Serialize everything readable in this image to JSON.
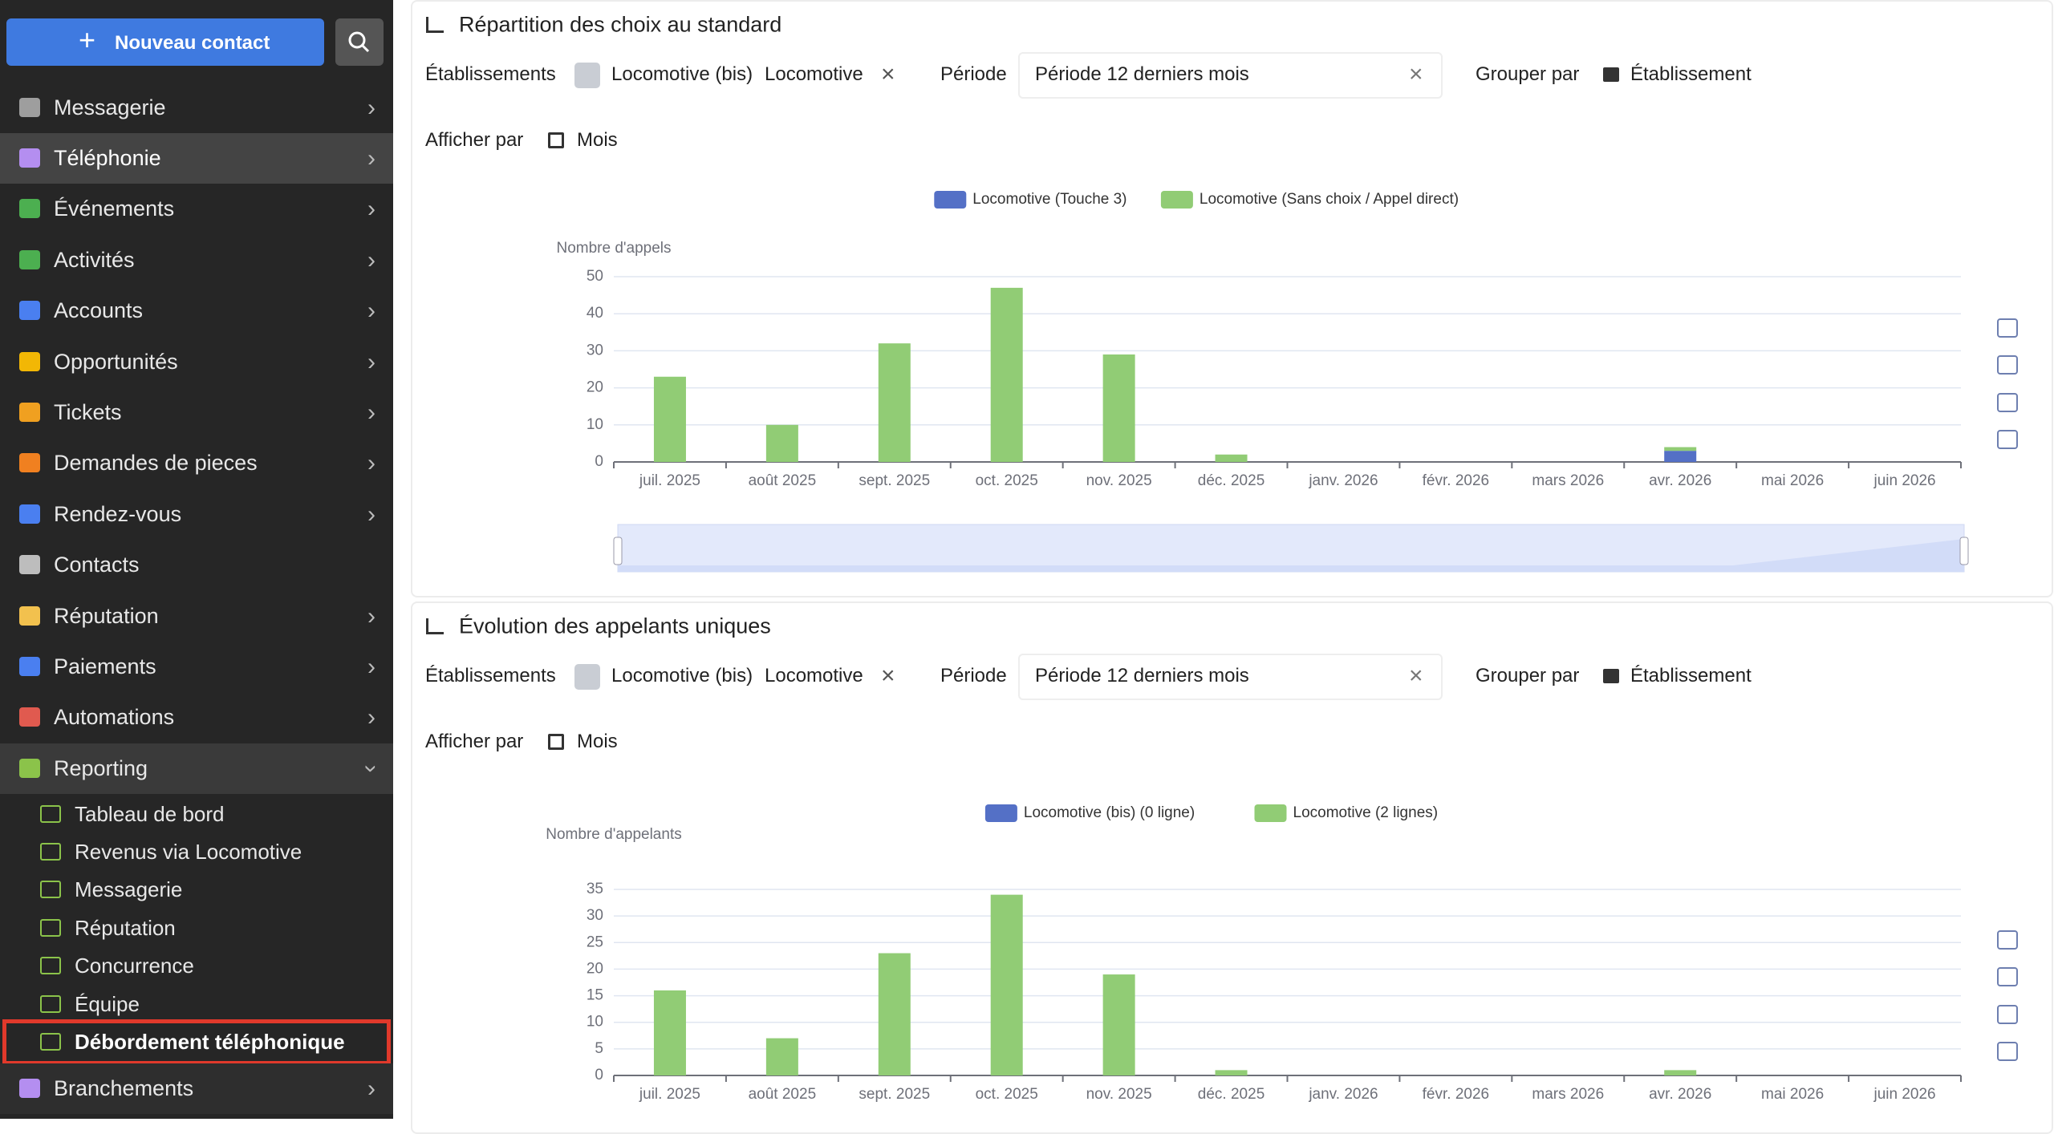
{
  "sidebar": {
    "new_contact": "Nouveau contact",
    "menu": [
      "Messagerie",
      "Téléphonie",
      "Événements",
      "Activités",
      "Accounts",
      "Opportunités",
      "Tickets",
      "Demandes de pieces",
      "Rendez-vous",
      "Contacts",
      "Réputation",
      "Paiements",
      "Automations",
      "Reporting"
    ],
    "submenu": [
      "Tableau de bord",
      "Revenus via Locomotive",
      "Messagerie",
      "Réputation",
      "Concurrence",
      "Équipe",
      "Débordement téléphonique"
    ],
    "footer": "Branchements"
  },
  "panels": [
    {
      "title": "Répartition des choix au standard",
      "filters": {
        "etab_label": "Établissements",
        "etab_values": [
          "Locomotive (bis)",
          "Locomotive"
        ],
        "periode_label": "Période",
        "periode_value": "Période 12 derniers mois",
        "grouper_label": "Grouper par",
        "grouper_value": "Établissement",
        "afficher_label": "Afficher par",
        "afficher_value": "Mois"
      },
      "chart": {
        "type": "bar",
        "stacked": true,
        "y_label": "Nombre d'appels",
        "categories": [
          "juil. 2025",
          "août 2025",
          "sept. 2025",
          "oct. 2025",
          "nov. 2025",
          "déc. 2025",
          "janv. 2026",
          "févr. 2026",
          "mars 2026",
          "avr. 2026",
          "mai 2026",
          "juin 2026"
        ],
        "series": [
          {
            "name": "Locomotive (Touche 3)",
            "color": "#5470c6",
            "values": [
              0,
              0,
              0,
              0,
              0,
              0,
              0,
              0,
              0,
              3,
              0,
              0
            ]
          },
          {
            "name": "Locomotive (Sans choix / Appel direct)",
            "color": "#91cc75",
            "values": [
              23,
              10,
              32,
              47,
              29,
              2,
              0,
              0,
              0,
              1,
              0,
              0
            ]
          }
        ],
        "ylim": [
          0,
          50
        ],
        "yticks": [
          0,
          10,
          20,
          30,
          40,
          50
        ],
        "grid": true
      }
    },
    {
      "title": "Évolution des appelants uniques",
      "filters": {
        "etab_label": "Établissements",
        "etab_values": [
          "Locomotive (bis)",
          "Locomotive"
        ],
        "periode_label": "Période",
        "periode_value": "Période 12 derniers mois",
        "grouper_label": "Grouper par",
        "grouper_value": "Établissement",
        "afficher_label": "Afficher par",
        "afficher_value": "Mois"
      },
      "chart": {
        "type": "bar",
        "stacked": true,
        "y_label": "Nombre d'appelants",
        "categories": [
          "juil. 2025",
          "août 2025",
          "sept. 2025",
          "oct. 2025",
          "nov. 2025",
          "déc. 2025",
          "janv. 2026",
          "févr. 2026",
          "mars 2026",
          "avr. 2026",
          "mai 2026",
          "juin 2026"
        ],
        "series": [
          {
            "name": "Locomotive (bis) (0 ligne)",
            "color": "#5470c6",
            "values": [
              0,
              0,
              0,
              0,
              0,
              0,
              0,
              0,
              0,
              0,
              0,
              0
            ]
          },
          {
            "name": "Locomotive (2 lignes)",
            "color": "#91cc75",
            "values": [
              16,
              7,
              23,
              34,
              19,
              1,
              0,
              0,
              0,
              1,
              0,
              0
            ]
          }
        ],
        "ylim": [
          0,
          35
        ],
        "yticks": [
          0,
          5,
          10,
          15,
          20,
          25,
          30,
          35
        ],
        "grid": true
      }
    }
  ]
}
